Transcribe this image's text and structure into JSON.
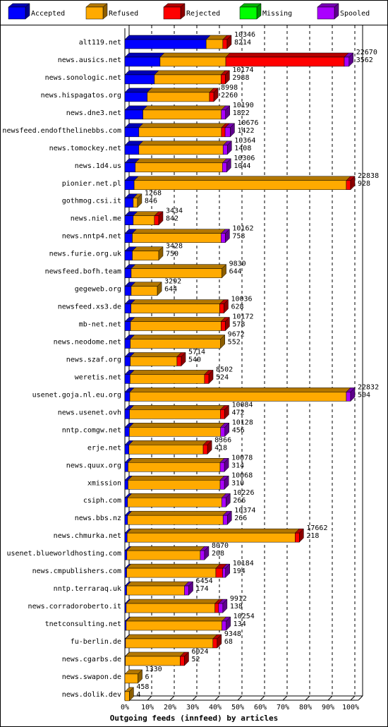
{
  "chart_data": {
    "type": "stacked-bar-3d-horizontal",
    "xlabel": "Outgoing feeds (innfeed) by articles",
    "categories": [
      "alt119.net",
      "news.ausics.net",
      "news.sonologic.net",
      "news.hispagatos.org",
      "news.dne3.net",
      "newsfeed.endofthelinebbs.com",
      "news.tomockey.net",
      "news.1d4.us",
      "pionier.net.pl",
      "gothmog.csi.it",
      "news.niel.me",
      "news.nntp4.net",
      "news.furie.org.uk",
      "newsfeed.bofh.team",
      "gegeweb.org",
      "newsfeed.xs3.de",
      "mb-net.net",
      "news.neodome.net",
      "news.szaf.org",
      "weretis.net",
      "usenet.goja.nl.eu.org",
      "news.usenet.ovh",
      "nntp.comgw.net",
      "erje.net",
      "news.quux.org",
      "xmission",
      "csiph.com",
      "news.bbs.nz",
      "news.chmurka.net",
      "usenet.blueworldhosting.com",
      "news.cmpublishers.com",
      "nntp.terraraq.uk",
      "news.corradoroberto.it",
      "tnetconsulting.net",
      "fu-berlin.de",
      "news.cgarbs.de",
      "news.swapon.de",
      "news.dolik.dev"
    ],
    "offered": [
      10346,
      22670,
      10174,
      8998,
      10190,
      10676,
      10364,
      10306,
      22838,
      1268,
      3434,
      10162,
      3428,
      9830,
      3292,
      10036,
      10172,
      9672,
      5714,
      8502,
      22832,
      10084,
      10128,
      8366,
      10078,
      10068,
      10226,
      10374,
      17662,
      8070,
      10184,
      6454,
      9912,
      10254,
      9348,
      6024,
      1330,
      458
    ],
    "accepted": [
      8214,
      3562,
      2988,
      2260,
      1822,
      1422,
      1408,
      1044,
      928,
      846,
      842,
      758,
      750,
      644,
      644,
      628,
      578,
      552,
      540,
      524,
      504,
      472,
      456,
      418,
      314,
      310,
      266,
      266,
      218,
      208,
      194,
      174,
      138,
      134,
      68,
      52,
      6,
      4
    ],
    "series": [
      {
        "name": "Accepted",
        "color": "#0000ff",
        "values": [
          36.0,
          15.6,
          13.1,
          9.9,
          8.0,
          6.2,
          6.2,
          4.6,
          4.1,
          3.7,
          3.7,
          3.3,
          3.3,
          2.8,
          2.8,
          2.7,
          2.5,
          2.4,
          2.4,
          2.3,
          2.2,
          2.1,
          2.0,
          1.8,
          1.4,
          1.4,
          1.2,
          1.2,
          1.0,
          0.9,
          0.8,
          0.8,
          0.6,
          0.6,
          0.3,
          0.2,
          0,
          0
        ]
      },
      {
        "name": "Refused",
        "color": "#ffaa00",
        "values": [
          7.4,
          29.1,
          29.5,
          27.6,
          34.7,
          36.6,
          37.3,
          38.6,
          94.0,
          1.9,
          9.4,
          39.3,
          11.7,
          40.2,
          11.6,
          39.3,
          40.1,
          40.0,
          20.7,
          33.0,
          95.9,
          40.2,
          40.4,
          32.9,
          40.8,
          40.8,
          41.7,
          42.3,
          74.4,
          32.5,
          39.5,
          25.6,
          39.3,
          42.4,
          38.7,
          24.3,
          5.8,
          2.0
        ]
      },
      {
        "name": "Rejected",
        "color": "#ff0000",
        "values": [
          1.9,
          52.5,
          1.9,
          1.9,
          0,
          1.6,
          0,
          0,
          1.9,
          0,
          1.9,
          0,
          0,
          0,
          0,
          1.9,
          1.9,
          0,
          1.9,
          1.9,
          0,
          1.9,
          0,
          1.9,
          0,
          0,
          0,
          0,
          1.9,
          0,
          3.0,
          0,
          1.6,
          0,
          1.9,
          1.9,
          0,
          0
        ]
      },
      {
        "name": "Missing",
        "color": "#00ff00",
        "values": [
          0,
          0,
          0,
          0,
          0,
          0,
          0,
          0,
          0,
          0,
          0,
          0,
          0,
          0,
          0,
          0,
          0,
          0,
          0,
          0,
          0,
          0,
          0,
          0,
          0,
          0,
          0,
          0,
          0,
          0,
          0,
          0,
          0,
          0,
          0,
          0,
          0,
          0
        ]
      },
      {
        "name": "Spooled",
        "color": "#aa00ff",
        "values": [
          0,
          2.1,
          0,
          0,
          1.9,
          2.3,
          1.9,
          1.9,
          0,
          0,
          0,
          1.9,
          0,
          0,
          0,
          0,
          0,
          0,
          0,
          0,
          1.9,
          0,
          1.9,
          0,
          1.9,
          1.9,
          1.9,
          1.9,
          0,
          1.9,
          1.3,
          1.9,
          1.9,
          1.9,
          0,
          0,
          0,
          0
        ]
      }
    ],
    "xlim": [
      0,
      100
    ],
    "xticks": [
      {
        "value": 0,
        "label": "0%"
      },
      {
        "value": 10,
        "label": "10%"
      },
      {
        "value": 20,
        "label": "20%"
      },
      {
        "value": 30,
        "label": "30%"
      },
      {
        "value": 40,
        "label": "40%"
      },
      {
        "value": 50,
        "label": "50%"
      },
      {
        "value": 60,
        "label": "60%"
      },
      {
        "value": 70,
        "label": "70%"
      },
      {
        "value": 80,
        "label": "80%"
      },
      {
        "value": 90,
        "label": "90%"
      },
      {
        "value": 100,
        "label": "100%"
      }
    ],
    "grid": true
  }
}
